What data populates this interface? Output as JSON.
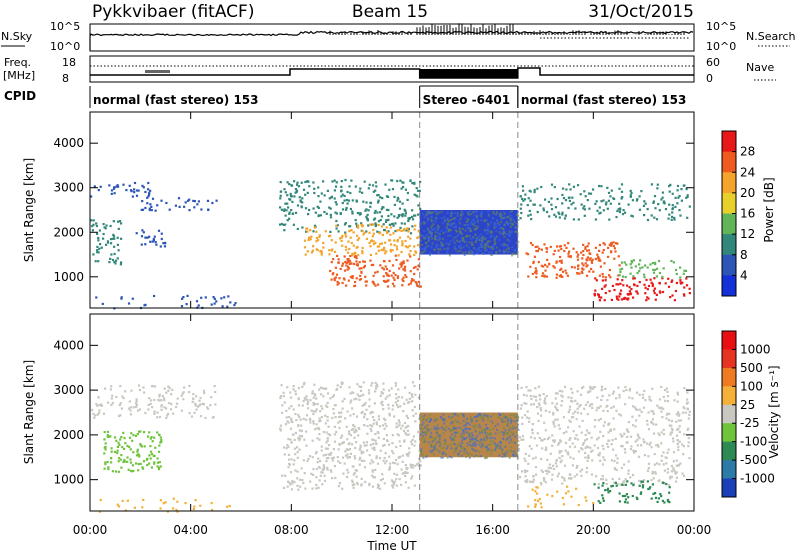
{
  "header": {
    "station": "Pykkvibaer (fitACF)",
    "beam": "Beam 15",
    "date": "31/Oct/2015"
  },
  "panels": {
    "nsky_label": "N.Sky",
    "nsky_ticks": [
      "10^5",
      "10^0"
    ],
    "nsearch_label": "N.Search",
    "nsearch_ticks": [
      "10^5",
      "10^0"
    ],
    "freq_label_top": "Freq.",
    "freq_label_bottom": "[MHz]",
    "freq_ticks": [
      "18",
      "8"
    ],
    "nave_label": "Nave",
    "nave_ticks": [
      "60",
      "0"
    ],
    "cpid_label": "CPID",
    "cpid_segments": [
      {
        "label": "normal (fast stereo) 153",
        "start_h": 0,
        "end_h": 13.1
      },
      {
        "label": "Stereo -6401",
        "start_h": 13.1,
        "end_h": 17.0
      },
      {
        "label": "normal (fast stereo) 153",
        "start_h": 17.0,
        "end_h": 24
      }
    ]
  },
  "axes": {
    "ylabel": "Slant Range [km]",
    "xlabel": "Time UT",
    "y_ticks": [
      "4000",
      "3000",
      "2000",
      "1000"
    ],
    "x_ticks": [
      "00:00",
      "04:00",
      "08:00",
      "12:00",
      "16:00",
      "20:00",
      "00:00"
    ]
  },
  "power_colorbar": {
    "label": "Power [dB]",
    "ticks": [
      "28",
      "24",
      "20",
      "16",
      "12",
      "8",
      "4"
    ],
    "colors": [
      "#1430d8",
      "#2c55b6",
      "#31877a",
      "#62b459",
      "#e8d02b",
      "#f4a32b",
      "#ee5a20",
      "#e81818"
    ]
  },
  "velocity_colorbar": {
    "label": "Velocity [m s⁻¹]",
    "ticks": [
      "1000",
      "500",
      "100",
      "25",
      "-25",
      "-100",
      "-500",
      "-1000"
    ],
    "colors": [
      "#1b3fb8",
      "#2c7aa8",
      "#2d8a55",
      "#6fc43c",
      "#c8c8c0",
      "#f4b038",
      "#ee7a22",
      "#e63322",
      "#e81010"
    ]
  },
  "chart_data": {
    "type": "heatmap",
    "x_unit": "hours UT",
    "xlim": [
      0,
      24
    ],
    "ylim": [
      300,
      4700
    ],
    "y_unit": "km",
    "power_regions": [
      {
        "t": [
          0.0,
          2.5
        ],
        "r": [
          2800,
          3150
        ],
        "color": "#2c55b6",
        "density": 0.5
      },
      {
        "t": [
          2.0,
          5.0
        ],
        "r": [
          2500,
          2800
        ],
        "color": "#2c55b6",
        "density": 0.5
      },
      {
        "t": [
          0.0,
          1.2
        ],
        "r": [
          1300,
          2300
        ],
        "color": "#31877a",
        "density": 0.6
      },
      {
        "t": [
          1.5,
          3.0
        ],
        "r": [
          1700,
          2100
        ],
        "color": "#2c55b6",
        "density": 0.5
      },
      {
        "t": [
          0.2,
          6.0
        ],
        "r": [
          300,
          600
        ],
        "color": "#2c55b6",
        "density": 0.25
      },
      {
        "t": [
          7.5,
          13.1
        ],
        "r": [
          2000,
          3200
        ],
        "color": "#31877a",
        "density": 0.55
      },
      {
        "t": [
          8.5,
          13.1
        ],
        "r": [
          1500,
          2200
        ],
        "color": "#f4a32b",
        "density": 0.65
      },
      {
        "t": [
          9.5,
          13.1
        ],
        "r": [
          800,
          1500
        ],
        "color": "#ee5a20",
        "density": 0.8
      },
      {
        "t": [
          13.1,
          17.0
        ],
        "r": [
          1500,
          2500
        ],
        "color": "#2c45c8",
        "density": 1.0
      },
      {
        "t": [
          17.0,
          23.8
        ],
        "r": [
          2300,
          3100
        ],
        "color": "#31877a",
        "density": 0.45
      },
      {
        "t": [
          17.3,
          21.0
        ],
        "r": [
          1000,
          1800
        ],
        "color": "#ee5a20",
        "density": 0.7
      },
      {
        "t": [
          20.0,
          23.8
        ],
        "r": [
          500,
          1000
        ],
        "color": "#e81818",
        "density": 0.7
      },
      {
        "t": [
          21.0,
          23.8
        ],
        "r": [
          1000,
          1400
        ],
        "color": "#62b459",
        "density": 0.55
      }
    ],
    "velocity_regions": [
      {
        "t": [
          0.0,
          5.0
        ],
        "r": [
          2400,
          3150
        ],
        "color": "#c8c8c0",
        "density": 0.45
      },
      {
        "t": [
          0.5,
          2.8
        ],
        "r": [
          1200,
          2100
        ],
        "color": "#6fc43c",
        "density": 0.75
      },
      {
        "t": [
          0.0,
          6.0
        ],
        "r": [
          300,
          600
        ],
        "color": "#f4b038",
        "density": 0.2
      },
      {
        "t": [
          7.5,
          13.1
        ],
        "r": [
          800,
          3200
        ],
        "color": "#c8c8c0",
        "density": 0.6
      },
      {
        "t": [
          13.1,
          17.0
        ],
        "r": [
          1500,
          2500
        ],
        "color": "#b8864a",
        "density": 1.0
      },
      {
        "t": [
          17.0,
          23.8
        ],
        "r": [
          900,
          3100
        ],
        "color": "#c8c8c0",
        "density": 0.5
      },
      {
        "t": [
          20.0,
          23.0
        ],
        "r": [
          500,
          1000
        ],
        "color": "#2d8a55",
        "density": 0.55
      },
      {
        "t": [
          17.2,
          20.0
        ],
        "r": [
          400,
          900
        ],
        "color": "#f4b038",
        "density": 0.25
      }
    ]
  }
}
